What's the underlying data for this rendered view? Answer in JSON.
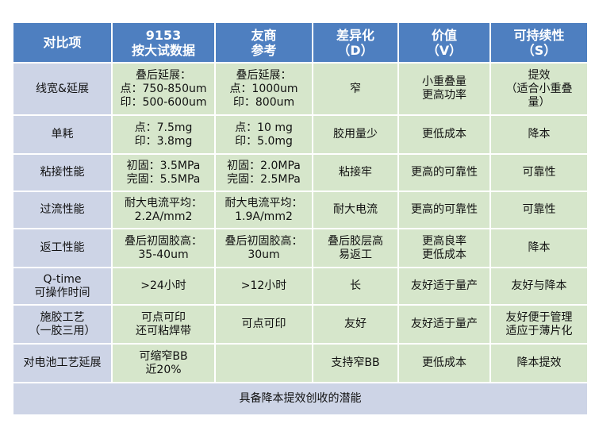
{
  "header": {
    "col0": [
      "对比项"
    ],
    "col1": [
      "9153",
      "按大试数据"
    ],
    "col2": [
      "友商",
      "参考"
    ],
    "col3": [
      "差异化",
      "（D）"
    ],
    "col4": [
      "价值",
      "（V）"
    ],
    "col5": [
      "可持续性",
      "（S）"
    ]
  },
  "rows": [
    {
      "item": [
        "线宽&延展"
      ],
      "c9153": [
        "叠后延展：",
        "点：750-850um",
        "印：500-600um"
      ],
      "competitor": [
        "叠后延展：",
        "点：1000um",
        "印：800um"
      ],
      "diff": [
        "窄"
      ],
      "value": [
        "小重叠量",
        "更高功率"
      ],
      "sustain": [
        "提效",
        "（适合小重叠",
        "量）"
      ]
    },
    {
      "item": [
        "单耗"
      ],
      "c9153": [
        "点：7.5mg",
        "印：3.8mg"
      ],
      "competitor": [
        "点：10 mg",
        "印：5.0mg"
      ],
      "diff": [
        "胶用量少"
      ],
      "value": [
        "更低成本"
      ],
      "sustain": [
        "降本"
      ]
    },
    {
      "item": [
        "粘接性能"
      ],
      "c9153": [
        "初固：3.5MPa",
        "完固：5.5MPa"
      ],
      "competitor": [
        "初固：2.0MPa",
        "完固：2.5MPa"
      ],
      "diff": [
        "粘接牢"
      ],
      "value": [
        "更高的可靠性"
      ],
      "sustain": [
        "可靠性"
      ]
    },
    {
      "item": [
        "过流性能"
      ],
      "c9153": [
        "耐大电流平均：",
        "2.2A/mm2"
      ],
      "competitor": [
        "耐大电流平均：",
        "1.9A/mm2"
      ],
      "diff": [
        "耐大电流"
      ],
      "value": [
        "更高的可靠性"
      ],
      "sustain": [
        "可靠性"
      ]
    },
    {
      "item": [
        "返工性能"
      ],
      "c9153": [
        "叠后初固胶高：",
        "35-40um"
      ],
      "competitor": [
        "叠后初固胶高：",
        "30um"
      ],
      "diff": [
        "叠后胶层高",
        "易返工"
      ],
      "value": [
        "更高良率",
        "更低成本"
      ],
      "sustain": [
        "降本"
      ]
    },
    {
      "item": [
        "Q-time",
        "可操作时间"
      ],
      "c9153": [
        ">24小时"
      ],
      "competitor": [
        ">12小时"
      ],
      "diff": [
        "长"
      ],
      "value": [
        "友好适于量产"
      ],
      "sustain": [
        "友好与降本"
      ]
    },
    {
      "item": [
        "施胶工艺",
        "（一胶三用）"
      ],
      "c9153": [
        "可点可印",
        "还可粘焊带"
      ],
      "competitor": [
        "可点可印"
      ],
      "diff": [
        "友好"
      ],
      "value": [
        "友好适于量产"
      ],
      "sustain": [
        "友好便于管理",
        "适应于薄片化"
      ]
    },
    {
      "item": [
        "对电池工艺延展"
      ],
      "c9153": [
        "可缩窄BB",
        "近20%"
      ],
      "competitor": [],
      "diff": [
        "支持窄BB"
      ],
      "value": [
        "更低成本"
      ],
      "sustain": [
        "降本提效"
      ]
    }
  ],
  "footer": "具备降本提效创收的潜能"
}
